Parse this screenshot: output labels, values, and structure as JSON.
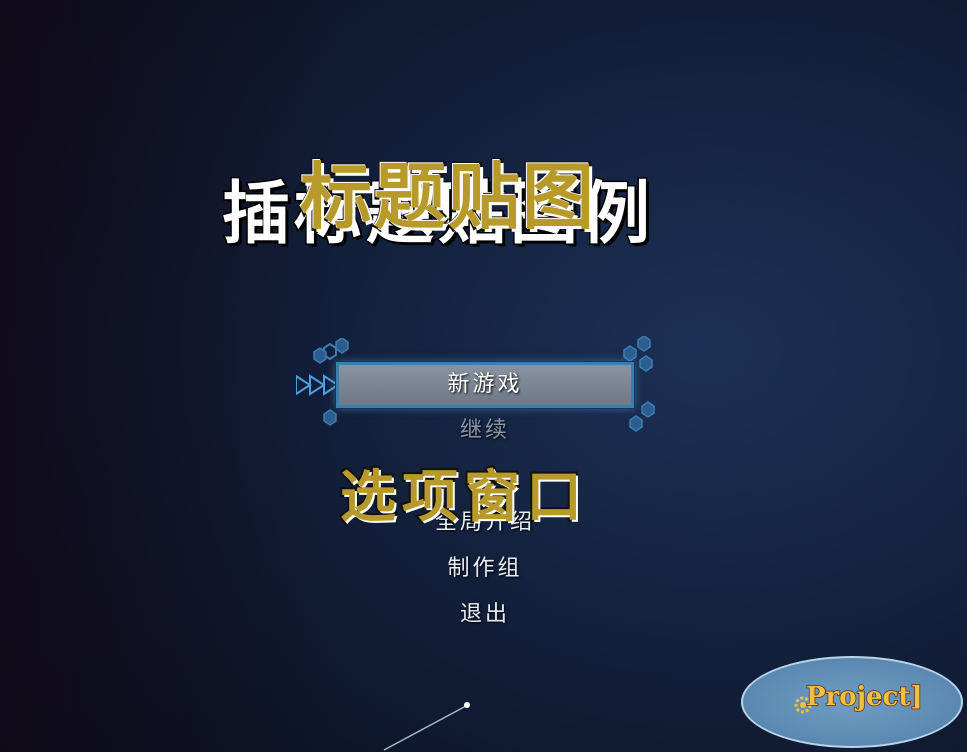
{
  "title_overlay": {
    "back_text": "插标题贴图例",
    "front_text": "标题贴图"
  },
  "menu": {
    "items": [
      {
        "label": "新游戏",
        "selected": true
      },
      {
        "label": "继续",
        "selected": false,
        "dim": true
      },
      {
        "label": "",
        "selected": false
      },
      {
        "label": "全局介绍",
        "selected": false
      },
      {
        "label": "制作组",
        "selected": false
      },
      {
        "label": "退出",
        "selected": false
      }
    ]
  },
  "overlay_label": "选项窗口",
  "logo": {
    "text": "Project]"
  },
  "colors": {
    "accent_blue": "#3a7fb0",
    "title_gold": "#b79a2a",
    "background": "#14223f"
  }
}
